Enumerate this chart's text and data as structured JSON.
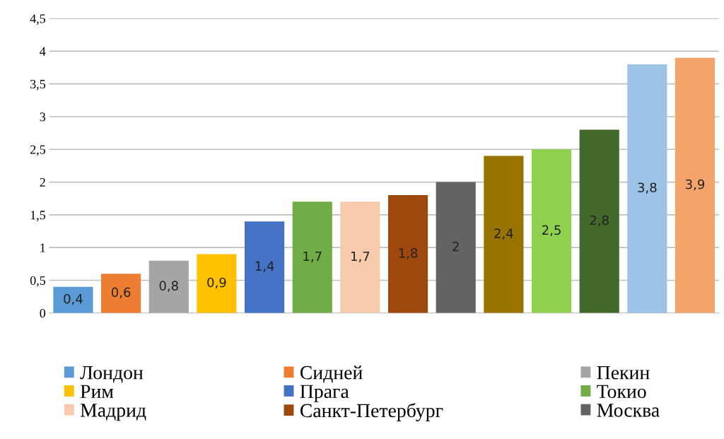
{
  "chart_data": {
    "type": "bar",
    "categories": [
      null,
      null,
      null,
      null,
      null,
      null,
      null,
      null,
      null,
      null,
      null,
      null,
      null,
      null
    ],
    "series": [
      {
        "name": "Лондон",
        "color": "#5b9bd5",
        "values": [
          0.4,
          null,
          null,
          null,
          null,
          null,
          null,
          null,
          null,
          null,
          null,
          null,
          null,
          null
        ],
        "value_labels": [
          "0,4",
          null,
          null,
          null,
          null,
          null,
          null,
          null,
          null,
          null,
          null,
          null,
          null,
          null
        ]
      },
      {
        "name": "Сидней",
        "color": "#ed7d31",
        "values": [
          null,
          0.6,
          null,
          null,
          null,
          null,
          null,
          null,
          null,
          null,
          null,
          null,
          null,
          null
        ],
        "value_labels": [
          null,
          "0,6",
          null,
          null,
          null,
          null,
          null,
          null,
          null,
          null,
          null,
          null,
          null,
          null
        ]
      },
      {
        "name": "Пекин",
        "color": "#a5a5a5",
        "values": [
          null,
          null,
          0.8,
          null,
          null,
          null,
          null,
          null,
          null,
          null,
          null,
          null,
          null,
          null
        ],
        "value_labels": [
          null,
          null,
          "0,8",
          null,
          null,
          null,
          null,
          null,
          null,
          null,
          null,
          null,
          null,
          null
        ]
      },
      {
        "name": "Рим",
        "color": "#ffc000",
        "values": [
          null,
          null,
          null,
          0.9,
          null,
          null,
          null,
          null,
          null,
          null,
          null,
          null,
          null,
          null
        ],
        "value_labels": [
          null,
          null,
          null,
          "0,9",
          null,
          null,
          null,
          null,
          null,
          null,
          null,
          null,
          null,
          null
        ]
      },
      {
        "name": "Прага",
        "color": "#4472c4",
        "values": [
          null,
          null,
          null,
          null,
          1.4,
          null,
          null,
          null,
          null,
          null,
          null,
          null,
          null,
          null
        ],
        "value_labels": [
          null,
          null,
          null,
          null,
          "1,4",
          null,
          null,
          null,
          null,
          null,
          null,
          null,
          null,
          null
        ]
      },
      {
        "name": "Токио",
        "color": "#70ad47",
        "values": [
          null,
          null,
          null,
          null,
          null,
          1.7,
          null,
          null,
          null,
          null,
          null,
          null,
          null,
          null
        ],
        "value_labels": [
          null,
          null,
          null,
          null,
          null,
          "1,7",
          null,
          null,
          null,
          null,
          null,
          null,
          null,
          null
        ]
      },
      {
        "name": "Мадрид",
        "color": "#f8cbad",
        "values": [
          null,
          null,
          null,
          null,
          null,
          null,
          1.7,
          null,
          null,
          null,
          null,
          null,
          null,
          null
        ],
        "value_labels": [
          null,
          null,
          null,
          null,
          null,
          null,
          "1,7",
          null,
          null,
          null,
          null,
          null,
          null,
          null
        ]
      },
      {
        "name": "Санкт-Петербург",
        "color": "#9e480e",
        "values": [
          null,
          null,
          null,
          null,
          null,
          null,
          null,
          1.8,
          null,
          null,
          null,
          null,
          null,
          null
        ],
        "value_labels": [
          null,
          null,
          null,
          null,
          null,
          null,
          null,
          "1,8",
          null,
          null,
          null,
          null,
          null,
          null
        ]
      },
      {
        "name": "Москва",
        "color": "#636363",
        "values": [
          null,
          null,
          null,
          null,
          null,
          null,
          null,
          null,
          2,
          null,
          null,
          null,
          null,
          null
        ],
        "value_labels": [
          null,
          null,
          null,
          null,
          null,
          null,
          null,
          null,
          "2",
          null,
          null,
          null,
          null,
          null
        ]
      },
      {
        "color": "#997300",
        "values": [
          null,
          null,
          null,
          null,
          null,
          null,
          null,
          null,
          null,
          2.4,
          null,
          null,
          null,
          null
        ],
        "value_labels": [
          null,
          null,
          null,
          null,
          null,
          null,
          null,
          null,
          null,
          "2,4",
          null,
          null,
          null,
          null
        ]
      },
      {
        "color": "#8fd14f",
        "values": [
          null,
          null,
          null,
          null,
          null,
          null,
          null,
          null,
          null,
          null,
          2.5,
          null,
          null,
          null
        ],
        "value_labels": [
          null,
          null,
          null,
          null,
          null,
          null,
          null,
          null,
          null,
          null,
          "2,5",
          null,
          null,
          null
        ]
      },
      {
        "color": "#43682b",
        "values": [
          null,
          null,
          null,
          null,
          null,
          null,
          null,
          null,
          null,
          null,
          null,
          2.8,
          null,
          null
        ],
        "value_labels": [
          null,
          null,
          null,
          null,
          null,
          null,
          null,
          null,
          null,
          null,
          null,
          "2,8",
          null,
          null
        ]
      },
      {
        "color": "#9dc3e6",
        "values": [
          null,
          null,
          null,
          null,
          null,
          null,
          null,
          null,
          null,
          null,
          null,
          null,
          3.8,
          null
        ],
        "value_labels": [
          null,
          null,
          null,
          null,
          null,
          null,
          null,
          null,
          null,
          null,
          null,
          null,
          "3,8",
          null
        ]
      },
      {
        "color": "#f4a46b",
        "values": [
          null,
          null,
          null,
          null,
          null,
          null,
          null,
          null,
          null,
          null,
          null,
          null,
          null,
          3.9
        ],
        "value_labels": [
          null,
          null,
          null,
          null,
          null,
          null,
          null,
          null,
          null,
          null,
          null,
          null,
          null,
          "3,9"
        ]
      }
    ],
    "ylim": [
      0,
      4.5
    ],
    "yticks": [
      0,
      {
        "value": 0.5,
        "label": "0,5"
      },
      1,
      {
        "value": 1.5,
        "label": "1,5"
      },
      2,
      {
        "value": 2.5,
        "label": "2,5"
      },
      3,
      {
        "value": 3.5,
        "label": "3,5"
      },
      4,
      {
        "value": 4.5,
        "label": "4,5"
      }
    ],
    "grid": "y",
    "legend": "bottom",
    "tick_labels": "y"
  }
}
